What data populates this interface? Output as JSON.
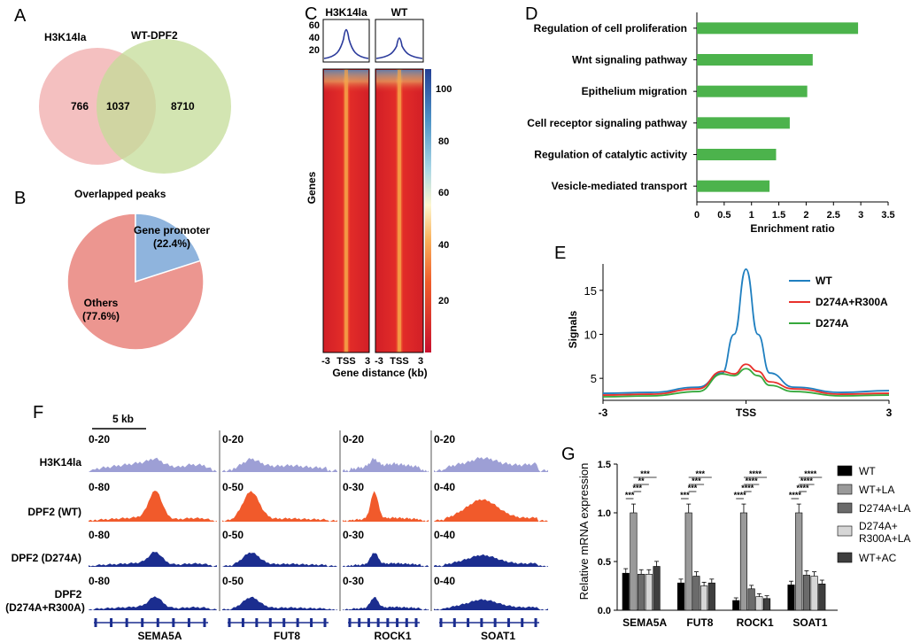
{
  "panels": [
    "A",
    "B",
    "C",
    "D",
    "E",
    "F",
    "G"
  ],
  "colors": {
    "pink": "#f2b5b5",
    "green_light": "#c4dc98",
    "pie_others": "#ec9690",
    "pie_promoter": "#8fb4dd",
    "go_bar": "#4cb34c",
    "wt_line": "#1f7fc0",
    "dm_line": "#e8302b",
    "sm_line": "#36a83c",
    "track_h3k": "#9d9fd5",
    "track_wt": "#f15a2b",
    "track_mut": "#1b2d8f"
  },
  "panelA": {
    "left_label": "H3K14la",
    "right_label": "WT-DPF2",
    "left_only": "766",
    "overlap": "1037",
    "right_only": "8710"
  },
  "panelB": {
    "title": "Overlapped peaks",
    "slices": [
      {
        "name": "Gene promoter",
        "pct": "(22.4%)",
        "value": 22.4
      },
      {
        "name": "Others",
        "pct": "(77.6%)",
        "value": 77.6
      }
    ]
  },
  "panelC": {
    "samples": [
      "H3K14la",
      "WT"
    ],
    "profile_ticks": [
      "60",
      "40",
      "20"
    ],
    "colorbar_ticks": [
      "100",
      "80",
      "60",
      "40",
      "20"
    ],
    "ylabel": "Genes",
    "xticks": [
      "-3",
      "TSS",
      "3"
    ],
    "xlabel": "Gene distance (kb)"
  },
  "chart_data": [
    {
      "type": "bar",
      "orientation": "horizontal",
      "categories": [
        "Regulation of cell proliferation",
        "Wnt signaling pathway",
        "Epithelium migration",
        "Cell receptor signaling pathway",
        "Regulation of catalytic activity",
        "Vesicle-mediated transport"
      ],
      "values": [
        2.95,
        2.12,
        2.02,
        1.7,
        1.45,
        1.33
      ],
      "xlabel": "Enrichment ratio",
      "xlim": [
        0,
        3.5
      ],
      "xticks": [
        "0",
        "0.5",
        "1",
        "1.5",
        "2",
        "2.5",
        "3",
        "3.5"
      ]
    },
    {
      "type": "line",
      "ylabel": "Signals",
      "xticks": [
        "-3",
        "TSS",
        "3"
      ],
      "xlim": [
        -3,
        3
      ],
      "ylim": [
        2.5,
        18
      ],
      "yticks": [
        "15",
        "10",
        "5"
      ],
      "legend": "top-right",
      "series": [
        {
          "name": "WT",
          "x": [
            -3,
            -2,
            -1,
            -0.5,
            -0.25,
            0,
            0.25,
            0.5,
            1,
            2,
            3
          ],
          "values": [
            3.3,
            3.4,
            4,
            5.6,
            10,
            17.4,
            10,
            5.6,
            4,
            3.4,
            3.6
          ]
        },
        {
          "name": "D274A+R300A",
          "x": [
            -3,
            -2,
            -1,
            -0.5,
            -0.25,
            0,
            0.25,
            0.5,
            1,
            2,
            3
          ],
          "values": [
            3.1,
            3.2,
            3.8,
            5.8,
            5.5,
            6.6,
            5.8,
            4.6,
            3.8,
            3.2,
            3.3
          ]
        },
        {
          "name": "D274A",
          "x": [
            -3,
            -2,
            -1,
            -0.5,
            -0.25,
            0,
            0.25,
            0.5,
            1,
            2,
            3
          ],
          "values": [
            2.9,
            3,
            3.5,
            5.5,
            5.3,
            6.1,
            5.3,
            4.2,
            3.5,
            3,
            3.1
          ]
        }
      ]
    },
    {
      "type": "bar",
      "ylabel": "Relative mRNA expression",
      "ylim": [
        0,
        1.5
      ],
      "yticks": [
        "0.0",
        "0.5",
        "1.0",
        "1.5"
      ],
      "categories": [
        "SEMA5A",
        "FUT8",
        "ROCK1",
        "SOAT1"
      ],
      "significance": [
        "***",
        "**",
        "****"
      ],
      "series": [
        {
          "name": "WT",
          "values": [
            0.38,
            0.28,
            0.1,
            0.26
          ]
        },
        {
          "name": "WT+LA",
          "values": [
            1.0,
            1.0,
            1.0,
            1.0
          ]
        },
        {
          "name": "D274A+LA",
          "values": [
            0.37,
            0.35,
            0.22,
            0.36
          ]
        },
        {
          "name": "D274A+ R300A+LA",
          "values": [
            0.37,
            0.25,
            0.14,
            0.35
          ]
        },
        {
          "name": "WT+AC",
          "values": [
            0.45,
            0.28,
            0.12,
            0.27
          ]
        }
      ]
    }
  ],
  "panelF": {
    "scale_label": "5 kb",
    "rows": [
      "H3K14la",
      "DPF2 (WT)",
      "DPF2 (D274A)",
      "DPF2",
      "(D274A+R300A)"
    ],
    "genes": [
      "SEMA5A",
      "FUT8",
      "ROCK1",
      "SOAT1"
    ],
    "ranges": [
      [
        "0-20",
        "0-20",
        "0-20",
        "0-20"
      ],
      [
        "0-80",
        "0-50",
        "0-30",
        "0-40"
      ],
      [
        "0-80",
        "0-50",
        "0-30",
        "0-40"
      ],
      [
        "0-80",
        "0-50",
        "0-30",
        "0-40"
      ]
    ]
  }
}
